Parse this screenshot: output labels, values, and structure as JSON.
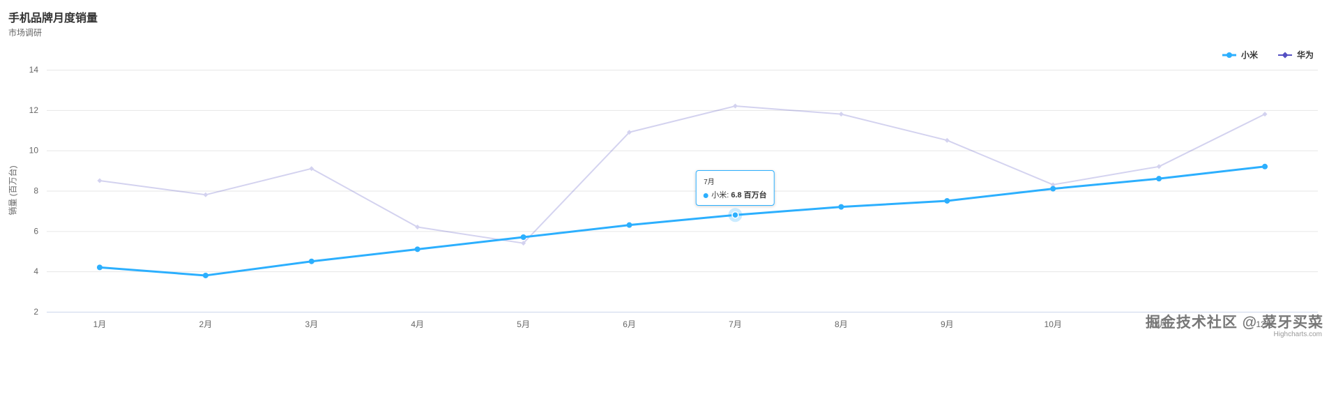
{
  "chart_data": {
    "type": "line",
    "title": "手机品牌月度销量",
    "subtitle": "市场调研",
    "ylabel": "销量 (百万台)",
    "xlabel": "",
    "ylim": [
      2,
      14
    ],
    "yticks": [
      2,
      4,
      6,
      8,
      10,
      12,
      14
    ],
    "grid": true,
    "legend_position": "top-right",
    "categories": [
      "1月",
      "2月",
      "3月",
      "4月",
      "5月",
      "6月",
      "7月",
      "8月",
      "9月",
      "10月",
      "11月",
      "12月"
    ],
    "series": [
      {
        "name": "小米",
        "color": "#2caffe",
        "marker": "circle",
        "line_width": 3,
        "dimmed": false,
        "values": [
          4.2,
          3.8,
          4.5,
          5.1,
          5.7,
          6.3,
          6.8,
          7.2,
          7.5,
          8.1,
          8.6,
          9.2
        ]
      },
      {
        "name": "华为",
        "color": "#544fc2",
        "marker": "diamond",
        "line_width": 2,
        "dimmed": true,
        "values": [
          8.5,
          7.8,
          9.1,
          6.2,
          5.4,
          10.9,
          12.2,
          11.8,
          10.5,
          8.3,
          9.2,
          11.8
        ]
      }
    ],
    "tooltip": {
      "header": "7月",
      "series_label": "小米: ",
      "value_label": "6.8 百万台",
      "point_series": 0,
      "point_index": 6
    },
    "colors": {
      "grid": "#e6e6e6",
      "axis_line": "#ccd6eb",
      "label": "#666666",
      "title": "#333333"
    }
  },
  "footer": {
    "watermark": "掘金技术社区 @ 菜牙买菜",
    "credits": "Highcharts.com"
  }
}
